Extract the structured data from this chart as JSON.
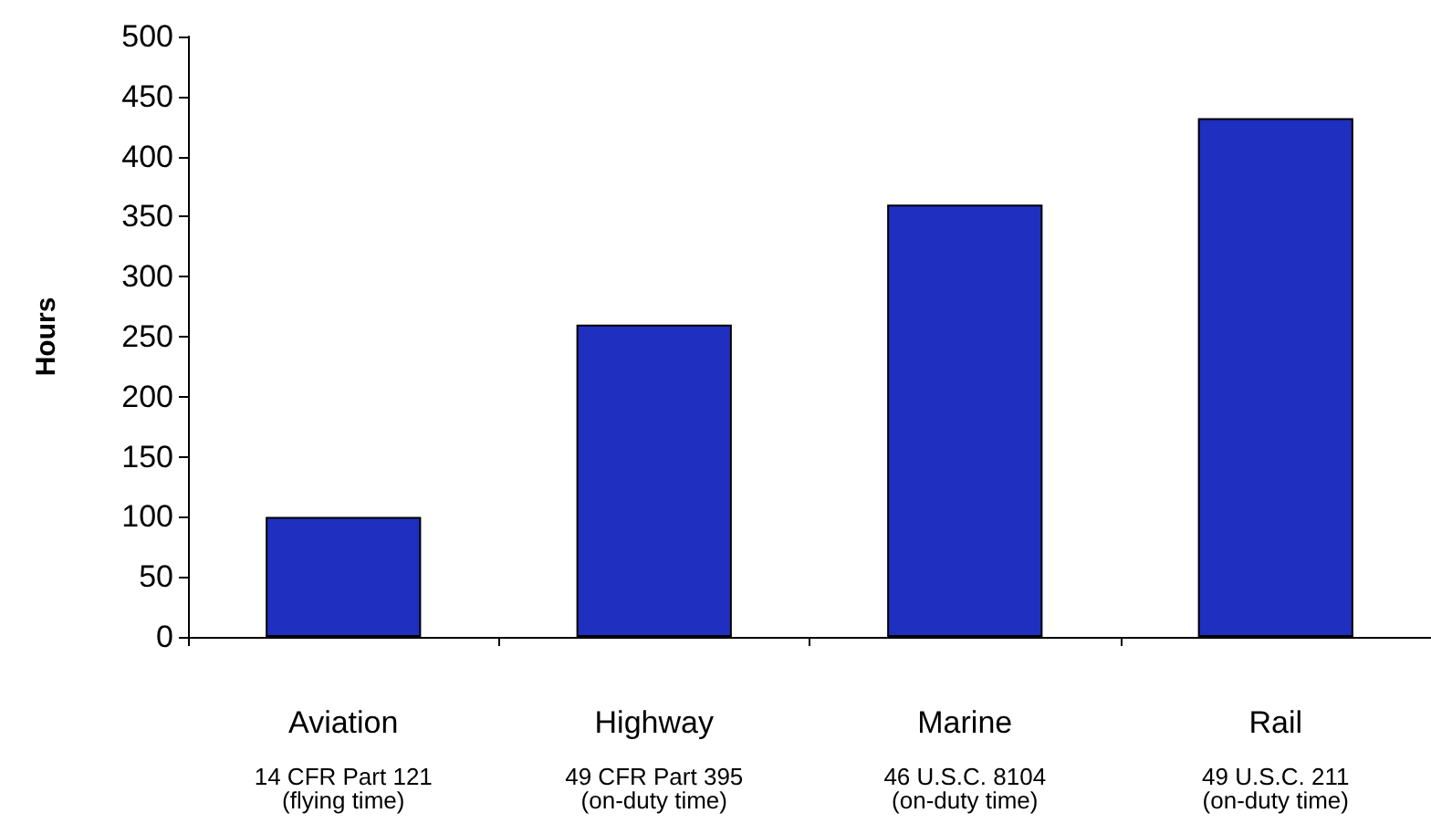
{
  "chart_data": {
    "type": "bar",
    "ylabel": "Hours",
    "categories": [
      "Aviation",
      "Highway",
      "Marine",
      "Rail"
    ],
    "values": [
      100,
      260,
      360,
      432
    ],
    "color": "#1f2fbf",
    "ylim": [
      0,
      500
    ],
    "yticks": [
      0,
      50,
      100,
      150,
      200,
      250,
      300,
      350,
      400,
      450,
      500
    ],
    "grid": false,
    "annotations": [
      "14 CFR Part 121\n(flying time)",
      "49 CFR Part 395\n(on-duty time)",
      "46 U.S.C. 8104\n(on-duty time)",
      "49 U.S.C. 211\n(on-duty time)"
    ]
  }
}
